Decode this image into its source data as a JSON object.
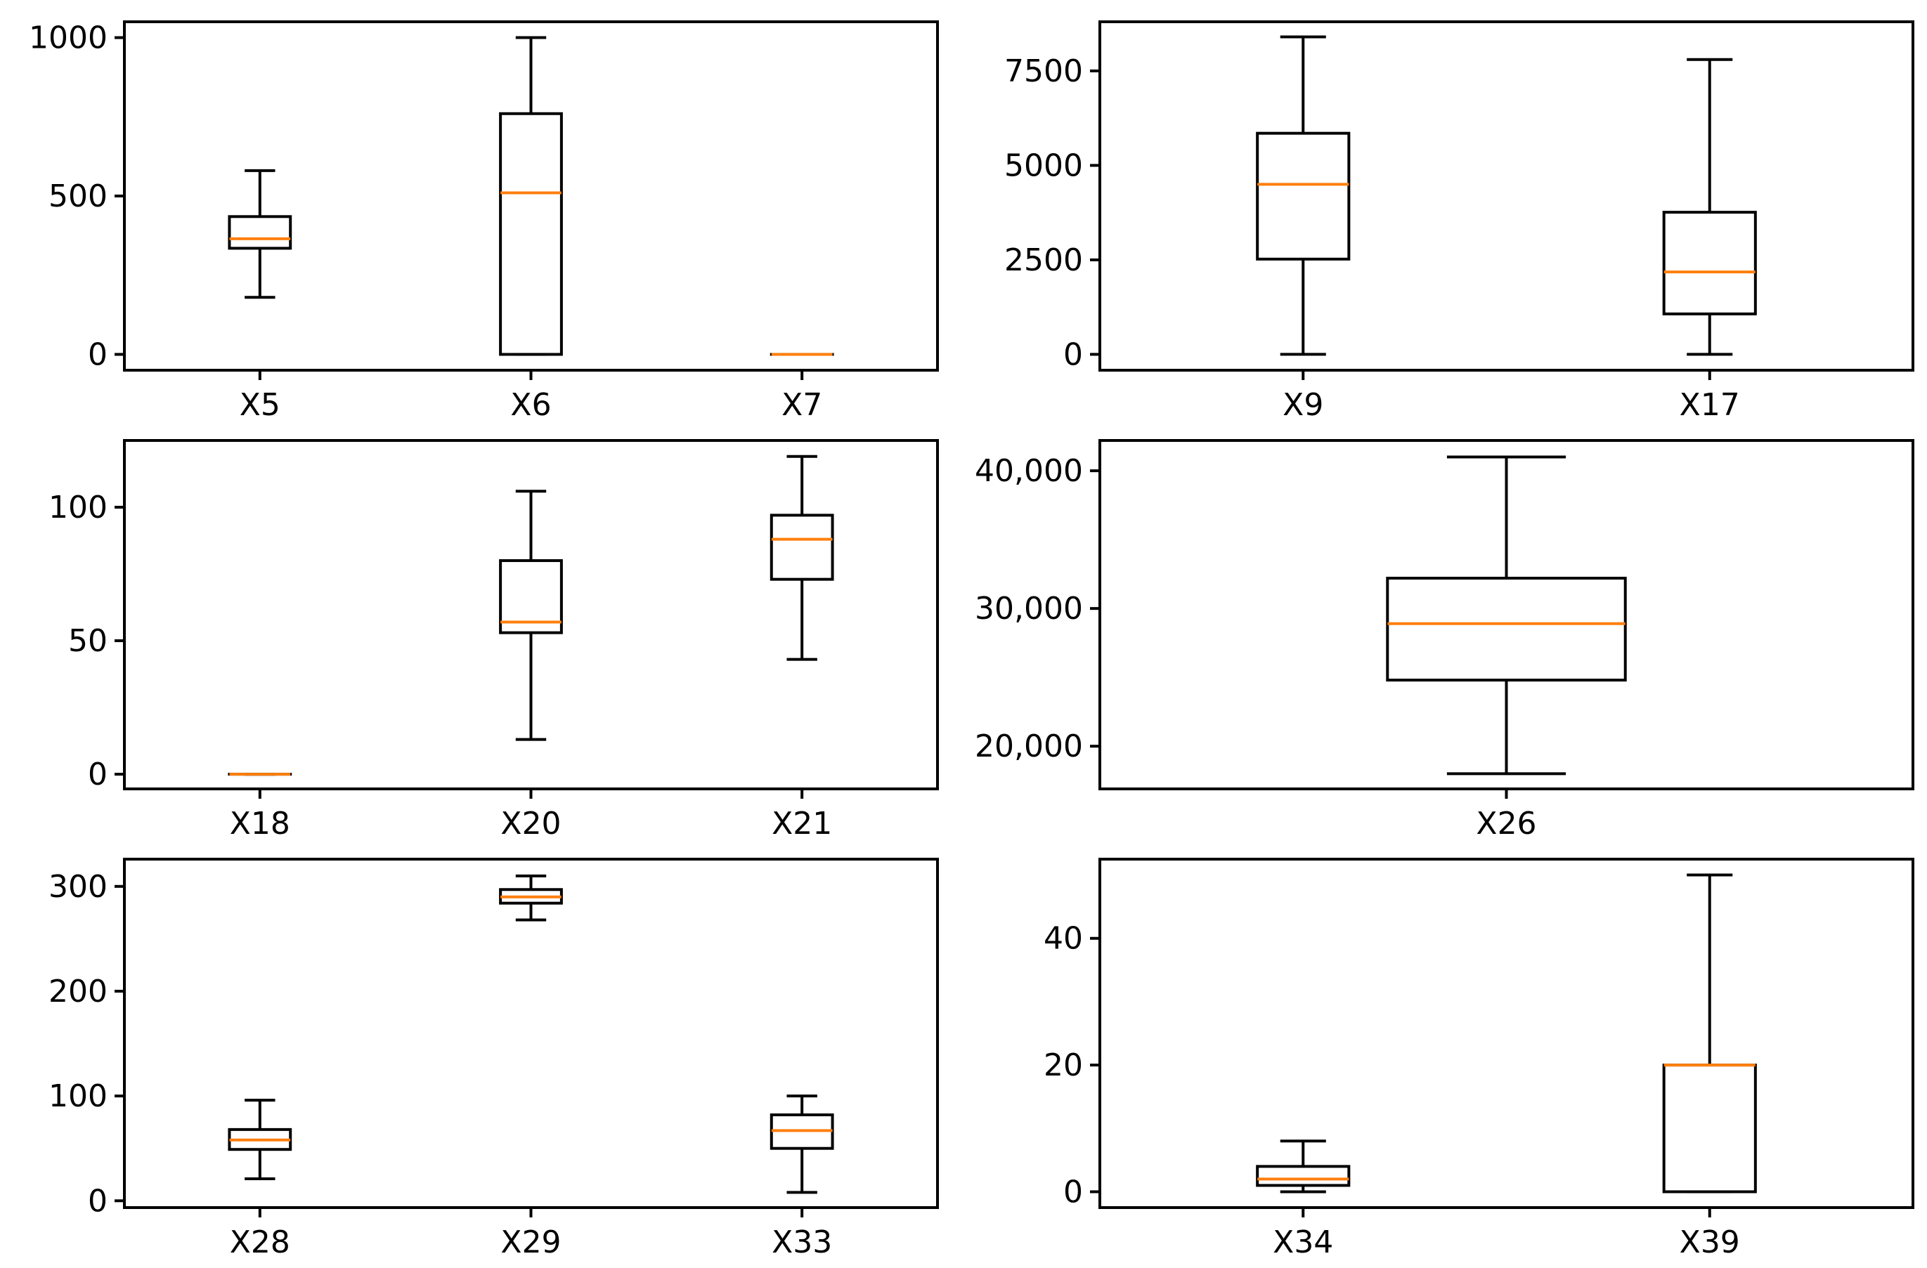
{
  "colors": {
    "box": "#000000",
    "median": "#ff7f0e",
    "background": "#ffffff",
    "frame": "#000000"
  },
  "chart_data": [
    {
      "type": "boxplot",
      "ylim": [
        -50,
        1050
      ],
      "yticks": [
        0,
        500,
        1000
      ],
      "ytick_labels": [
        "0",
        "500",
        "1000"
      ],
      "boxes": [
        {
          "label": "X5",
          "whislo": 180,
          "q1": 335,
          "med": 365,
          "q3": 435,
          "whishi": 580
        },
        {
          "label": "X6",
          "whislo": 0,
          "q1": 0,
          "med": 510,
          "q3": 760,
          "whishi": 1000
        },
        {
          "label": "X7",
          "whislo": 0,
          "q1": 0,
          "med": 0,
          "q3": 0,
          "whishi": 0
        }
      ]
    },
    {
      "type": "boxplot",
      "ylim": [
        -420,
        8800
      ],
      "yticks": [
        0,
        2500,
        5000,
        7500
      ],
      "ytick_labels": [
        "0",
        "2500",
        "5000",
        "7500"
      ],
      "boxes": [
        {
          "label": "X9",
          "whislo": 0,
          "q1": 2520,
          "med": 4500,
          "q3": 5850,
          "whishi": 8400
        },
        {
          "label": "X17",
          "whislo": 0,
          "q1": 1070,
          "med": 2180,
          "q3": 3760,
          "whishi": 7800
        }
      ]
    },
    {
      "type": "boxplot",
      "ylim": [
        -5.5,
        125
      ],
      "yticks": [
        0,
        50,
        100
      ],
      "ytick_labels": [
        "0",
        "50",
        "100"
      ],
      "boxes": [
        {
          "label": "X18",
          "whislo": 0,
          "q1": 0,
          "med": 0,
          "q3": 0,
          "whishi": 0
        },
        {
          "label": "X20",
          "whislo": 13,
          "q1": 53,
          "med": 57,
          "q3": 80,
          "whishi": 106
        },
        {
          "label": "X21",
          "whislo": 43,
          "q1": 73,
          "med": 88,
          "q3": 97,
          "whishi": 119
        }
      ]
    },
    {
      "type": "boxplot",
      "ylim": [
        16900,
        42200
      ],
      "yticks": [
        20000,
        30000,
        40000
      ],
      "ytick_labels": [
        "20,000",
        "30,000",
        "40,000"
      ],
      "boxes": [
        {
          "label": "X26",
          "whislo": 18000,
          "q1": 24800,
          "med": 28900,
          "q3": 32200,
          "whishi": 41000
        }
      ]
    },
    {
      "type": "boxplot",
      "ylim": [
        -6.5,
        326
      ],
      "yticks": [
        0,
        100,
        200,
        300
      ],
      "ytick_labels": [
        "0",
        "100",
        "200",
        "300"
      ],
      "boxes": [
        {
          "label": "X28",
          "whislo": 21,
          "q1": 49,
          "med": 58,
          "q3": 68,
          "whishi": 96
        },
        {
          "label": "X29",
          "whislo": 268,
          "q1": 284,
          "med": 290,
          "q3": 297,
          "whishi": 310
        },
        {
          "label": "X33",
          "whislo": 8,
          "q1": 50,
          "med": 67,
          "q3": 82,
          "whishi": 100
        }
      ]
    },
    {
      "type": "boxplot",
      "ylim": [
        -2.5,
        52.5
      ],
      "yticks": [
        0,
        20,
        40
      ],
      "ytick_labels": [
        "0",
        "20",
        "40"
      ],
      "boxes": [
        {
          "label": "X34",
          "whislo": 0,
          "q1": 1,
          "med": 2,
          "q3": 4,
          "whishi": 8
        },
        {
          "label": "X39",
          "whislo": 0,
          "q1": 0,
          "med": 20,
          "q3": 20,
          "whishi": 50
        }
      ]
    }
  ]
}
